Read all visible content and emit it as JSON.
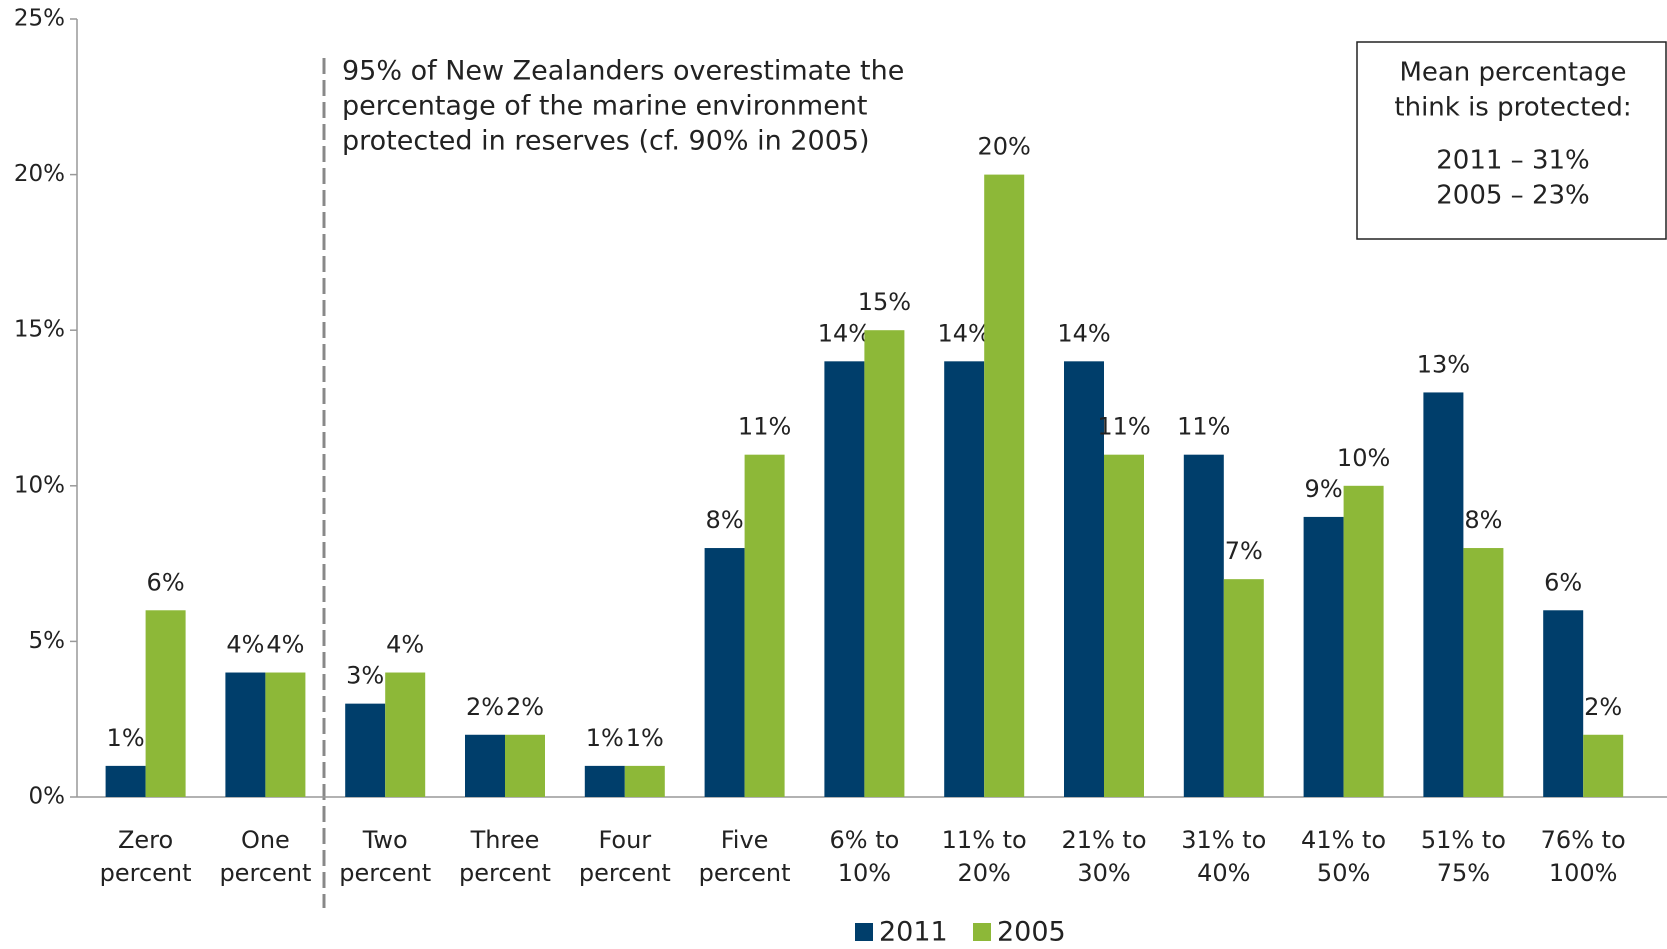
{
  "chart_data": {
    "type": "bar",
    "categories": [
      [
        "Zero",
        "percent"
      ],
      [
        "One",
        "percent"
      ],
      [
        "Two",
        "percent"
      ],
      [
        "Three",
        "percent"
      ],
      [
        "Four",
        "percent"
      ],
      [
        "Five",
        "percent"
      ],
      [
        "6% to",
        "10%"
      ],
      [
        "11% to",
        "20%"
      ],
      [
        "21% to",
        "30%"
      ],
      [
        "31% to",
        "40%"
      ],
      [
        "41% to",
        "50%"
      ],
      [
        "51% to",
        "75%"
      ],
      [
        "76% to",
        "100%"
      ]
    ],
    "series": [
      {
        "name": "2011",
        "color": "#003e6b",
        "values": [
          1,
          4,
          3,
          2,
          1,
          8,
          14,
          14,
          14,
          11,
          9,
          13,
          6
        ],
        "value_labels": [
          "1%",
          "4%",
          "3%",
          "2%",
          "1%",
          "8%",
          "14%",
          "14%",
          "14%",
          "11%",
          "9%",
          "13%",
          "6%"
        ]
      },
      {
        "name": "2005",
        "color": "#8db838",
        "values": [
          6,
          4,
          4,
          2,
          1,
          11,
          15,
          20,
          11,
          7,
          10,
          8,
          2
        ],
        "value_labels": [
          "6%",
          "4%",
          "4%",
          "2%",
          "1%",
          "11%",
          "15%",
          "20%",
          "11%",
          "7%",
          "10%",
          "8%",
          "2%"
        ]
      }
    ],
    "ylim": [
      0,
      25
    ],
    "yticks": [
      {
        "value": 0,
        "label": "0%"
      },
      {
        "value": 5,
        "label": "5%"
      },
      {
        "value": 10,
        "label": "10%"
      },
      {
        "value": 15,
        "label": "15%"
      },
      {
        "value": 20,
        "label": "20%"
      },
      {
        "value": 25,
        "label": "25%"
      }
    ],
    "annotation": [
      "95% of New Zealanders overestimate the",
      "percentage of the marine environment",
      "protected in reserves (cf. 90% in 2005)"
    ],
    "info_box": [
      "Mean percentage",
      "think is protected:",
      "2011 – 31%",
      "2005 – 23%"
    ],
    "legend": "bottom"
  }
}
